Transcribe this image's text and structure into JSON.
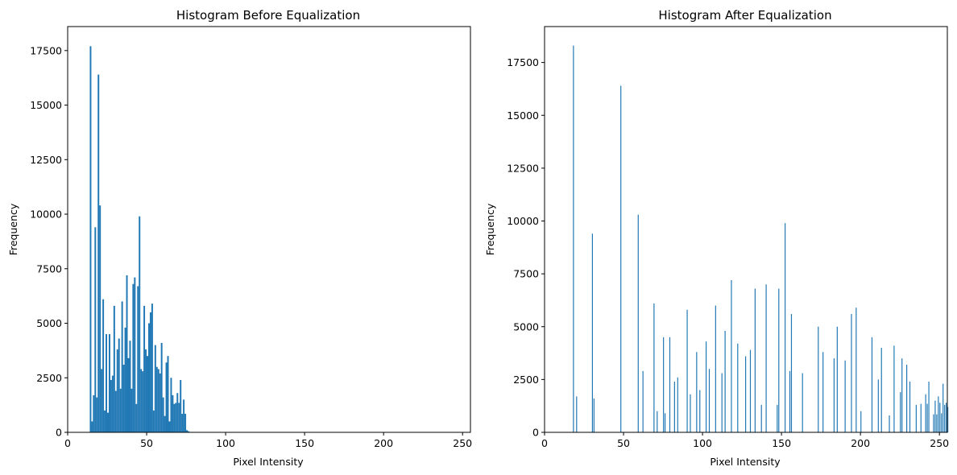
{
  "chart_data": [
    {
      "type": "bar",
      "title": "Histogram Before Equalization",
      "xlabel": "Pixel Intensity",
      "ylabel": "Frequency",
      "xlim": [
        0,
        255
      ],
      "ylim": [
        0,
        18600
      ],
      "xticks": [
        0,
        50,
        100,
        150,
        200,
        250
      ],
      "yticks": [
        0,
        2500,
        5000,
        7500,
        10000,
        12500,
        15000,
        17500
      ],
      "color": "#1f77b4",
      "bin_width": 1,
      "x": [
        14,
        15,
        16,
        17,
        18,
        19,
        20,
        21,
        22,
        23,
        24,
        25,
        26,
        27,
        28,
        29,
        30,
        31,
        32,
        33,
        34,
        35,
        36,
        37,
        38,
        39,
        40,
        41,
        42,
        43,
        44,
        45,
        46,
        47,
        48,
        49,
        50,
        51,
        52,
        53,
        54,
        55,
        56,
        57,
        58,
        59,
        60,
        61,
        62,
        63,
        64,
        65,
        66,
        67,
        68,
        69,
        70,
        71,
        72,
        73,
        74,
        75,
        76,
        77,
        78,
        79,
        80,
        81
      ],
      "values": [
        17700,
        500,
        1700,
        9400,
        1600,
        16400,
        10400,
        2900,
        6100,
        1000,
        4500,
        900,
        4500,
        2400,
        2600,
        5800,
        1900,
        3800,
        4300,
        2000,
        6000,
        3100,
        4800,
        7200,
        3400,
        4200,
        2000,
        6800,
        7100,
        1300,
        6700,
        9900,
        2900,
        2800,
        5800,
        3800,
        3500,
        5000,
        5500,
        5900,
        1000,
        4000,
        3000,
        2900,
        2700,
        4100,
        1600,
        750,
        3200,
        3500,
        500,
        2500,
        1700,
        1300,
        1350,
        1800,
        1350,
        2400,
        850,
        1500,
        850,
        100,
        50,
        20,
        0,
        0,
        0,
        0
      ]
    },
    {
      "type": "bar",
      "title": "Histogram After Equalization",
      "xlabel": "Pixel Intensity",
      "ylabel": "Frequency",
      "xlim": [
        0,
        255
      ],
      "ylim": [
        0,
        19200
      ],
      "xticks": [
        0,
        50,
        100,
        150,
        200,
        250
      ],
      "yticks": [
        0,
        2500,
        5000,
        7500,
        10000,
        12500,
        15000,
        17500
      ],
      "color": "#1f77b4",
      "bin_width": 0.6,
      "x": [
        18,
        20,
        30,
        31,
        48,
        59,
        62,
        69,
        71,
        75,
        76,
        79,
        82,
        84,
        90,
        92,
        96,
        98,
        102,
        104,
        108,
        112,
        114,
        118,
        122,
        127,
        130,
        133,
        137,
        140,
        147,
        148,
        152,
        155,
        156,
        163,
        173,
        176,
        183,
        185,
        190,
        194,
        197,
        200,
        207,
        211,
        213,
        218,
        221,
        225,
        226,
        229,
        231,
        235,
        238,
        241,
        242,
        243,
        246,
        247,
        248,
        249,
        250,
        251,
        252,
        253,
        254,
        255
      ],
      "values": [
        18300,
        1700,
        9400,
        1600,
        16400,
        10300,
        2900,
        6100,
        1000,
        4500,
        900,
        4500,
        2400,
        2600,
        5800,
        1800,
        3800,
        2000,
        4300,
        3000,
        6000,
        2800,
        4800,
        7200,
        4200,
        3600,
        3900,
        6800,
        1300,
        7000,
        1300,
        6800,
        9900,
        2900,
        5600,
        2800,
        5000,
        3800,
        3500,
        5000,
        3400,
        5600,
        5900,
        1000,
        4500,
        2500,
        4000,
        800,
        4100,
        1900,
        3500,
        3200,
        2400,
        1300,
        1350,
        1800,
        1350,
        2400,
        850,
        1500,
        850,
        1700,
        1400,
        900,
        2300,
        1300,
        1400,
        1200
      ]
    }
  ]
}
